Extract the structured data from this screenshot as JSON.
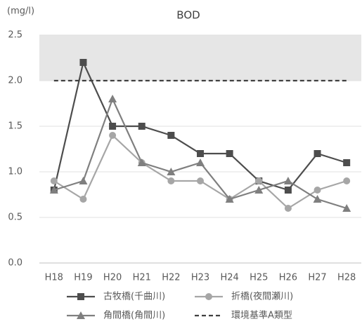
{
  "chart_data": {
    "type": "line",
    "title": "BOD",
    "unit_label": "(mg/l)",
    "categories": [
      "H18",
      "H19",
      "H20",
      "H21",
      "H22",
      "H23",
      "H24",
      "H25",
      "H26",
      "H27",
      "H28"
    ],
    "series": [
      {
        "name": "古牧橋(千曲川)",
        "color": "#4d4d4d",
        "marker": "square",
        "values": [
          0.8,
          2.2,
          1.5,
          1.5,
          1.4,
          1.2,
          1.2,
          0.9,
          0.8,
          1.2,
          1.1
        ]
      },
      {
        "name": "折橋(夜間瀬川)",
        "color": "#a6a6a6",
        "marker": "circle",
        "values": [
          0.9,
          0.7,
          1.4,
          1.1,
          0.9,
          0.9,
          0.7,
          0.9,
          0.6,
          0.8,
          0.9
        ]
      },
      {
        "name": "角間橋(角間川)",
        "color": "#7f7f7f",
        "marker": "triangle",
        "values": [
          0.8,
          0.9,
          1.8,
          1.1,
          1.0,
          1.1,
          0.7,
          0.8,
          0.9,
          0.7,
          0.6
        ]
      },
      {
        "name": "環境基準A類型",
        "color": "#404040",
        "marker": "none",
        "dashed": true,
        "values": [
          2,
          2,
          2,
          2,
          2,
          2,
          2,
          2,
          2,
          2,
          2
        ]
      }
    ],
    "shaded_range": [
      2,
      2.5
    ],
    "shade_color": "#e6e6e6",
    "ylim": [
      0,
      2.5
    ],
    "yticks": [
      {
        "value": 0,
        "label": "0.0"
      },
      0.5,
      {
        "value": 1,
        "label": "1.0"
      },
      1.5,
      {
        "value": 2,
        "label": "2.0"
      },
      2.5
    ],
    "grid": true
  }
}
